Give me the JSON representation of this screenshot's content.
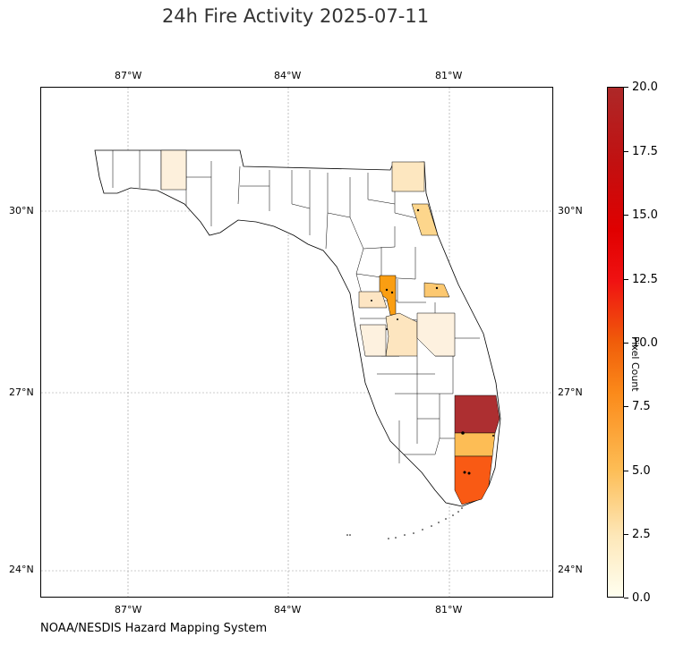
{
  "title": "24h Fire Activity 2025-07-11",
  "map": {
    "region": "Florida",
    "lon_ticks": [
      "87°W",
      "84°W",
      "81°W"
    ],
    "lat_ticks": [
      "30°N",
      "27°N",
      "24°N"
    ],
    "grid": true,
    "highlighted_counties": [
      {
        "county": "Walton",
        "pixel_count": 1,
        "color": "#fdf0dc"
      },
      {
        "county": "Nassau",
        "pixel_count": 2,
        "color": "#fde7c0"
      },
      {
        "county": "St. Johns",
        "pixel_count": 3,
        "color": "#fdd68c"
      },
      {
        "county": "Sumter",
        "pixel_count": 6,
        "color": "#fa9e12"
      },
      {
        "county": "Seminole",
        "pixel_count": 4,
        "color": "#fcc870"
      },
      {
        "county": "Pasco",
        "pixel_count": 2,
        "color": "#fde5c3"
      },
      {
        "county": "Polk",
        "pixel_count": 2,
        "color": "#fde5bf"
      },
      {
        "county": "Osceola",
        "pixel_count": 1,
        "color": "#fdf1df"
      },
      {
        "county": "Manatee",
        "pixel_count": 1,
        "color": "#fdf1df"
      },
      {
        "county": "Palm Beach",
        "pixel_count": 20,
        "color": "#ad2f31"
      },
      {
        "county": "Broward",
        "pixel_count": 5,
        "color": "#fdbd55"
      },
      {
        "county": "Miami-Dade",
        "pixel_count": 9,
        "color": "#f95a14"
      }
    ]
  },
  "colorbar": {
    "label": "Pixel Count",
    "ticks": [
      "0.0",
      "2.5",
      "5.0",
      "7.5",
      "10.0",
      "12.5",
      "15.0",
      "17.5",
      "20.0"
    ],
    "range": [
      0,
      20
    ],
    "colors": {
      "low": "#fffff0",
      "mid": "#f05d0a",
      "high": "#ad2828"
    }
  },
  "credit": "NOAA/NESDIS Hazard Mapping System"
}
